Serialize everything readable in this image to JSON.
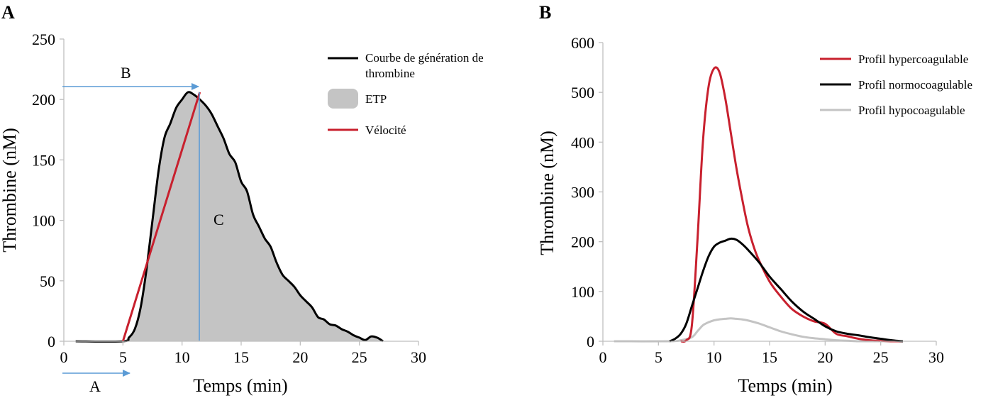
{
  "chart_data": [
    {
      "panel_label": "A",
      "type": "area",
      "xlabel": "Temps (min)",
      "ylabel": "Thrombine (nM)",
      "xlim": [
        0,
        30
      ],
      "ylim": [
        0,
        250
      ],
      "xticks": [
        "0",
        "5",
        "10",
        "15",
        "20",
        "25",
        "30"
      ],
      "yticks": [
        "0",
        "50",
        "100",
        "150",
        "200",
        "250"
      ],
      "grid": false,
      "legend_position": "right",
      "legend": [
        {
          "label": "Courbe de génération de thrombine",
          "kind": "line",
          "color": "#000000"
        },
        {
          "label": "ETP",
          "kind": "fill",
          "color": "#c4c4c4"
        },
        {
          "label": "Vélocité",
          "kind": "line",
          "color": "#c8202e"
        }
      ],
      "series": [
        {
          "name": "Courbe de génération de thrombine",
          "x": [
            1,
            5,
            5.5,
            6,
            6.5,
            7,
            7.5,
            8,
            8.5,
            9,
            9.5,
            10,
            10.5,
            11,
            11.5,
            12,
            12.5,
            13,
            13.5,
            14,
            14.5,
            15,
            15.5,
            16,
            16.5,
            17,
            17.5,
            18,
            18.5,
            19,
            19.5,
            20,
            20.5,
            21,
            21.5,
            22,
            22.5,
            23,
            23.5,
            24,
            24.5,
            25,
            25.5,
            26,
            26.5,
            27
          ],
          "y": [
            0,
            0,
            3,
            10,
            28,
            60,
            100,
            140,
            168,
            180,
            193,
            200,
            206,
            204,
            200,
            195,
            188,
            178,
            168,
            155,
            148,
            132,
            124,
            105,
            95,
            85,
            78,
            65,
            55,
            50,
            45,
            38,
            33,
            28,
            20,
            18,
            14,
            13,
            10,
            8,
            5,
            3,
            1,
            4,
            3,
            0
          ]
        },
        {
          "name": "Vélocité",
          "x": [
            5,
            11.5
          ],
          "y": [
            0,
            206
          ]
        }
      ],
      "annotations": [
        {
          "text": "A",
          "meaning": "arrow along time axis from 0 to 5"
        },
        {
          "text": "B",
          "meaning": "arrow at peak level from 0 to 11.5"
        },
        {
          "text": "C",
          "meaning": "area under curve"
        }
      ]
    },
    {
      "panel_label": "B",
      "type": "line",
      "xlabel": "Temps (min)",
      "ylabel": "Thrombine (nM)",
      "xlim": [
        0,
        30
      ],
      "ylim": [
        0,
        600
      ],
      "xticks": [
        "0",
        "5",
        "10",
        "15",
        "20",
        "25",
        "30"
      ],
      "yticks": [
        "0",
        "100",
        "200",
        "300",
        "400",
        "500",
        "600"
      ],
      "grid": false,
      "legend_position": "top-right",
      "series": [
        {
          "name": "Profil hypercoagulable",
          "color": "#c8202e",
          "x": [
            7,
            7.5,
            8,
            8.5,
            9,
            9.5,
            10,
            10.5,
            11,
            11.5,
            12,
            12.5,
            13,
            13.5,
            14,
            15,
            16,
            17,
            18,
            19,
            20,
            21,
            22,
            23,
            24,
            25,
            26,
            27
          ],
          "y": [
            0,
            2,
            30,
            200,
            400,
            510,
            548,
            540,
            490,
            420,
            350,
            290,
            235,
            195,
            165,
            120,
            90,
            65,
            50,
            40,
            35,
            15,
            10,
            5,
            2,
            1,
            0,
            0
          ]
        },
        {
          "name": "Profil normocoagulable",
          "color": "#000000",
          "x": [
            6,
            6.5,
            7,
            7.5,
            8,
            8.5,
            9,
            9.5,
            10,
            10.5,
            11,
            11.5,
            12,
            12.5,
            13,
            14,
            15,
            16,
            17,
            18,
            19,
            20,
            21,
            22,
            23,
            24,
            25,
            26,
            27
          ],
          "y": [
            0,
            5,
            15,
            35,
            70,
            105,
            140,
            170,
            190,
            198,
            202,
            206,
            204,
            196,
            185,
            160,
            130,
            105,
            80,
            60,
            45,
            30,
            20,
            15,
            12,
            8,
            5,
            2,
            0
          ]
        },
        {
          "name": "Profil hypocoagulable",
          "color": "#c4c4c4",
          "x": [
            1,
            6,
            7,
            8,
            8.5,
            9,
            9.5,
            10,
            10.5,
            11,
            11.5,
            12,
            12.5,
            13,
            14,
            15,
            16,
            17,
            18,
            19,
            20,
            21,
            22,
            23,
            24,
            25,
            26,
            27
          ],
          "y": [
            0,
            0,
            2,
            8,
            20,
            32,
            38,
            42,
            44,
            45,
            46,
            45,
            44,
            42,
            36,
            28,
            20,
            14,
            9,
            6,
            4,
            2,
            1,
            0,
            0,
            0,
            0,
            0
          ]
        }
      ]
    }
  ]
}
